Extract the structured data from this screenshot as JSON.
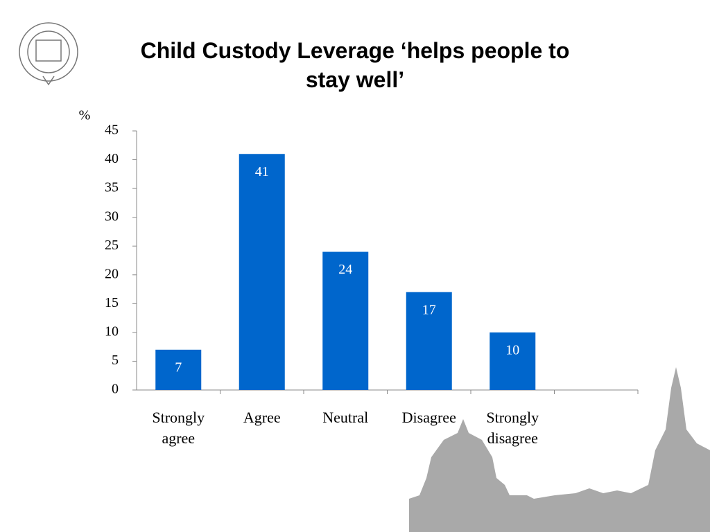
{
  "chart_data": {
    "type": "bar",
    "title": "Child Custody Leverage ‘helps people to stay well’",
    "y_label": "%",
    "categories": [
      "Strongly agree",
      "Agree",
      "Neutral",
      "Disagree",
      "Strongly disagree",
      null
    ],
    "values": [
      7,
      41,
      24,
      17,
      10,
      null
    ],
    "color": "#0066cc",
    "ylim": [
      0,
      45
    ],
    "yticks": [
      0,
      5,
      10,
      15,
      20,
      25,
      30,
      35,
      40,
      45
    ],
    "grid": false
  }
}
